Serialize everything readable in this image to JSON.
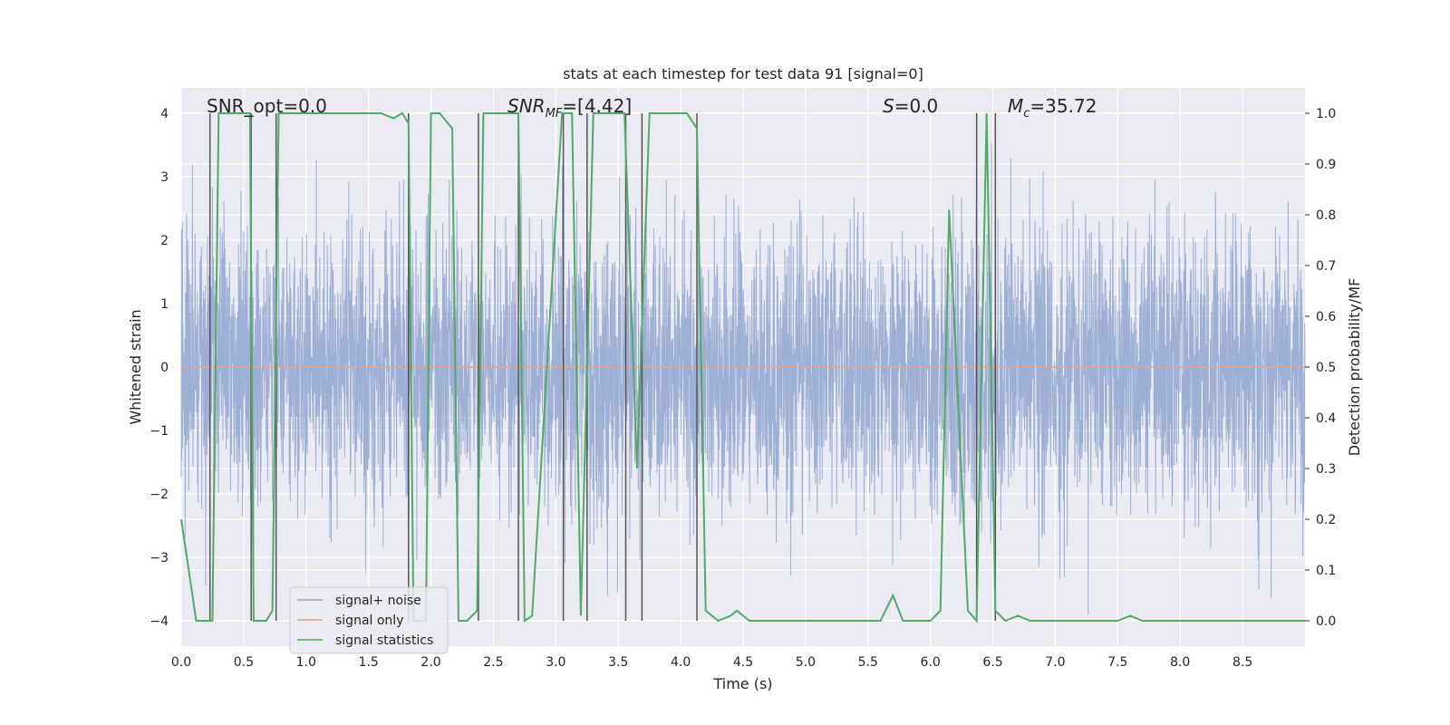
{
  "chart_data": {
    "type": "line",
    "title": "stats at each timestep for test data 91 [signal=0]",
    "xlabel": "Time (s)",
    "ylabel": "Whitened strain",
    "y2label": "Detection probability/MF",
    "xlim": [
      0.0,
      9.0
    ],
    "ylim": [
      -4.4,
      4.4
    ],
    "y2lim": [
      -0.05,
      1.05
    ],
    "x_ticks": [
      "0.0",
      "0.5",
      "1.0",
      "1.5",
      "2.0",
      "2.5",
      "3.0",
      "3.5",
      "4.0",
      "4.5",
      "5.0",
      "5.5",
      "6.0",
      "6.5",
      "7.0",
      "7.5",
      "8.0",
      "8.5"
    ],
    "y_ticks": [
      "−4",
      "−3",
      "−2",
      "−1",
      "0",
      "1",
      "2",
      "3",
      "4"
    ],
    "y2_ticks": [
      "0.0",
      "0.1",
      "0.2",
      "0.3",
      "0.4",
      "0.5",
      "0.6",
      "0.7",
      "0.8",
      "0.9",
      "1.0"
    ],
    "annotations": {
      "snr_opt": "SNR_opt=0.0",
      "snr_mf": "SNR",
      "snr_mf_sub": "MF",
      "snr_mf_value": "=[4.42]",
      "s": "S",
      "s_value": "=0.0",
      "mc": "M",
      "mc_sub": "c",
      "mc_value": "=35.72"
    },
    "legend": {
      "placement": "lower-left",
      "entries": [
        "signal+ noise",
        "signal only",
        "signal statistics"
      ]
    },
    "series": [
      {
        "name": "signal+ noise",
        "color": "#8fa4cf",
        "kind": "noise",
        "sample_rate": 512,
        "sigma": 1.1,
        "clip": [
          -3.9,
          3.9
        ],
        "seed": 91
      },
      {
        "name": "signal only",
        "color": "#e8a283",
        "x": [
          0.0,
          9.0
        ],
        "y": [
          0.0,
          0.0
        ]
      },
      {
        "name": "signal statistics",
        "color": "#55a868",
        "axis": "right",
        "x": [
          0.0,
          0.12,
          0.25,
          0.3,
          0.55,
          0.58,
          0.68,
          0.73,
          0.78,
          1.0,
          1.6,
          1.7,
          1.77,
          1.82,
          1.86,
          1.9,
          1.96,
          2.0,
          2.07,
          2.17,
          2.22,
          2.29,
          2.37,
          2.42,
          2.7,
          2.75,
          2.81,
          3.05,
          3.13,
          3.2,
          3.3,
          3.55,
          3.65,
          3.75,
          4.05,
          4.13,
          4.2,
          4.3,
          4.4,
          4.45,
          4.55,
          5.6,
          5.7,
          5.78,
          6.0,
          6.08,
          6.15,
          6.3,
          6.37,
          6.45,
          6.52,
          6.6,
          6.7,
          6.8,
          6.9,
          7.5,
          7.6,
          7.7,
          9.0
        ],
        "y": [
          0.2,
          0.0,
          0.0,
          1.0,
          1.0,
          0.0,
          0.0,
          0.02,
          1.0,
          1.0,
          1.0,
          0.99,
          1.0,
          0.98,
          0.0,
          0.0,
          0.0,
          1.0,
          1.0,
          0.97,
          0.0,
          0.0,
          0.02,
          1.0,
          1.0,
          0.0,
          0.01,
          1.0,
          1.0,
          0.01,
          1.0,
          1.0,
          0.3,
          1.0,
          1.0,
          0.97,
          0.02,
          0.0,
          0.01,
          0.02,
          0.0,
          0.0,
          0.05,
          0.0,
          0.0,
          0.02,
          0.81,
          0.02,
          0.0,
          1.0,
          0.02,
          0.0,
          0.01,
          0.0,
          0.0,
          0.0,
          0.01,
          0.0,
          0.0
        ]
      }
    ],
    "vlines": [
      0.23,
      0.56,
      0.76,
      1.82,
      2.38,
      2.7,
      3.06,
      3.25,
      3.56,
      3.69,
      4.13,
      6.37,
      6.52
    ]
  }
}
